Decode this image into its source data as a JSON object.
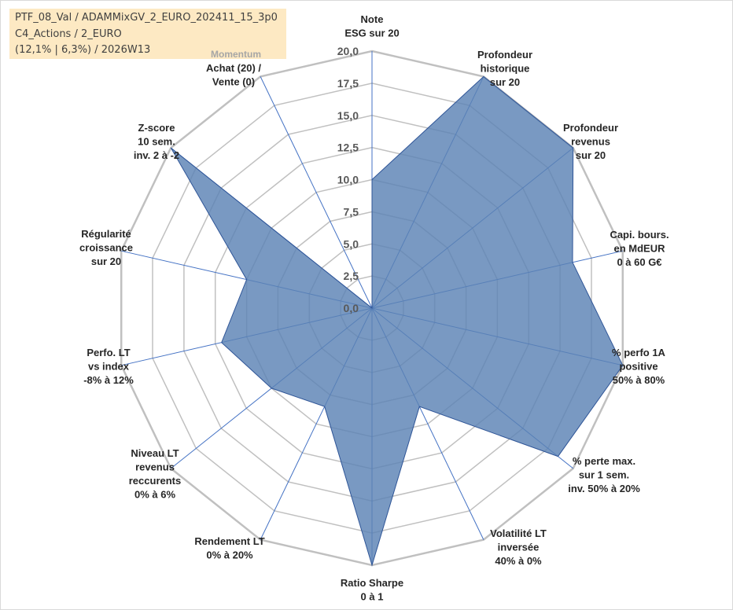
{
  "header": {
    "line1": "PTF_08_Val / ADAMMixGV_2_EURO_202411_15_3p0",
    "line2": "C4_Actions / 2_EURO",
    "line3": "(12,1% | 6,3%) / 2026W13"
  },
  "chart_data": {
    "type": "radar",
    "rmin": 0,
    "rmax": 20,
    "ticks": [
      "0,0",
      "2,5",
      "5,0",
      "7,5",
      "10,0",
      "12,5",
      "15,0",
      "17,5",
      "20,0"
    ],
    "categories": [
      [
        "Note",
        "ESG sur 20"
      ],
      [
        "Profondeur",
        "historique",
        "sur 20"
      ],
      [
        "Profondeur",
        "revenus",
        "sur 20"
      ],
      [
        "Capi. bours.",
        "en MdEUR",
        "0 à 60 G€"
      ],
      [
        "% perfo 1A",
        "positive",
        "50% à 80%"
      ],
      [
        "% perte max.",
        "sur 1 sem.",
        "inv. 50% à 20%"
      ],
      [
        "Volatilité LT",
        "inversée",
        "40% à 0%"
      ],
      [
        "Ratio Sharpe",
        "0 à 1"
      ],
      [
        "Rendement LT",
        "0% à 20%"
      ],
      [
        "Niveau LT",
        "revenus",
        "reccurents",
        "0% à 6%"
      ],
      [
        "Perfo. LT",
        "vs index",
        "-8% à 12%"
      ],
      [
        "Régularité",
        "croissance",
        "sur 20"
      ],
      [
        "Z-score",
        "10 sem.",
        "inv. 2 à -2"
      ],
      [
        "Achat (20) /",
        "Vente (0)"
      ]
    ],
    "category_note": "Momentum",
    "values": [
      10.0,
      20.0,
      20.0,
      16.0,
      20.0,
      18.5,
      8.5,
      20.0,
      8.5,
      10.0,
      12.0,
      10.0,
      20.0,
      0.0
    ],
    "colors": {
      "fill": "#5b82b5",
      "stroke": "#2f5597",
      "grid": "#c0c0c0",
      "spoke": "#4472c4"
    }
  }
}
